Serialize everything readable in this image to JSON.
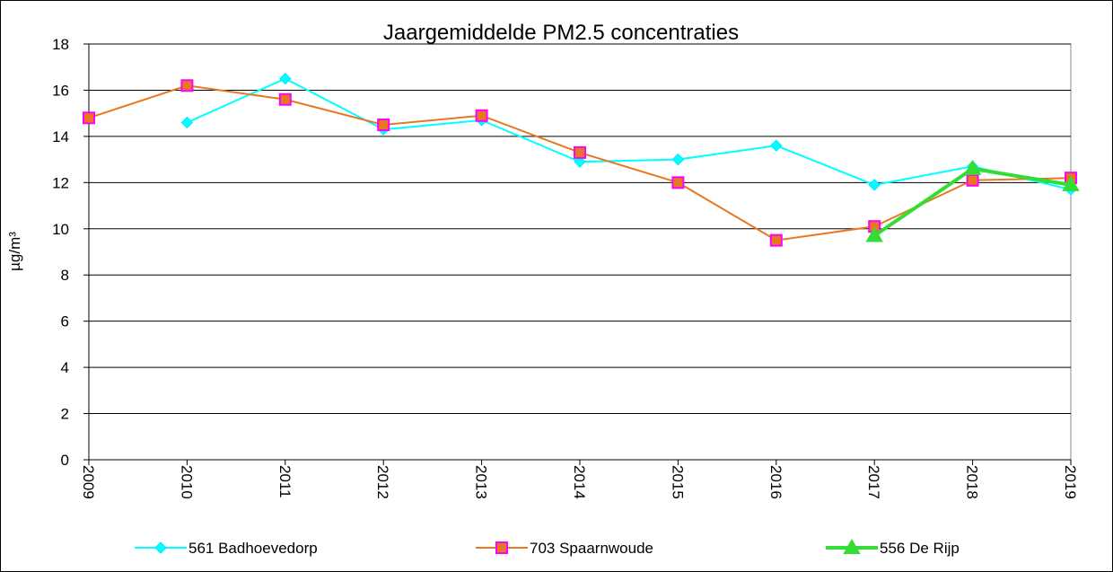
{
  "chart_data": {
    "type": "line",
    "title": "Jaargemiddelde PM2.5 concentraties",
    "y_label": "µg/m³",
    "categories": [
      "2009",
      "2010",
      "2011",
      "2012",
      "2013",
      "2014",
      "2015",
      "2016",
      "2017",
      "2018",
      "2019"
    ],
    "series": [
      {
        "name": "561 Badhoevedorp",
        "color": "#00ffff",
        "marker": "diamond",
        "marker_edge_color": "#00e5ff",
        "values": [
          null,
          14.6,
          16.5,
          14.3,
          14.7,
          12.9,
          13.0,
          13.6,
          11.9,
          12.7,
          11.7
        ]
      },
      {
        "name": "703 Spaarnwoude",
        "color": "#e87722",
        "marker": "square",
        "marker_edge_color": "#ff00ff",
        "values": [
          14.8,
          16.2,
          15.6,
          14.5,
          14.9,
          13.3,
          12.0,
          9.5,
          10.1,
          12.1,
          12.2
        ]
      },
      {
        "name": "556 De Rijp",
        "color": "#33dd33",
        "marker": "triangle",
        "marker_edge_color": "#33dd33",
        "values": [
          null,
          null,
          null,
          null,
          null,
          null,
          null,
          null,
          9.7,
          12.6,
          11.9
        ]
      }
    ],
    "ylim": [
      0,
      18
    ],
    "yticks": [
      0,
      2,
      4,
      6,
      8,
      10,
      12,
      14,
      16,
      18
    ],
    "grid": true
  }
}
